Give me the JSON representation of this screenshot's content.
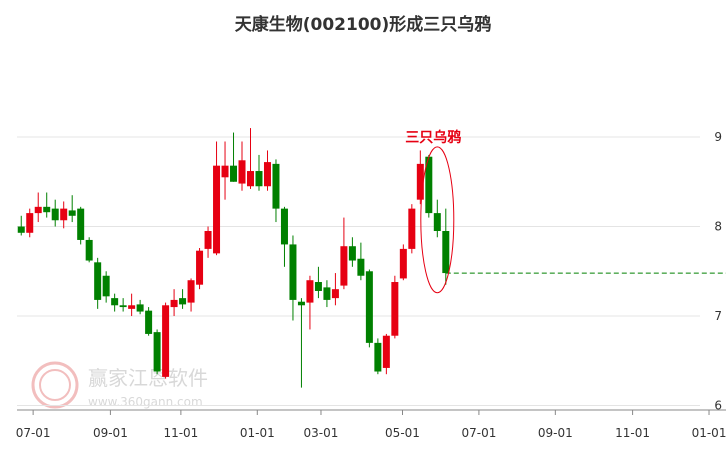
{
  "chart_data": {
    "type": "candlestick",
    "title": "天康生物(002100)形成三只乌鸦",
    "annotation": "三只乌鸦",
    "watermark": "赢家江恩软件",
    "watermark_url": "www.360gann.com",
    "x": [
      0,
      1,
      2,
      3,
      4,
      5,
      6,
      7,
      8,
      9,
      10,
      11,
      12,
      13,
      14,
      15,
      16,
      17,
      18,
      19,
      20,
      21,
      22,
      23,
      24,
      25,
      26,
      27,
      28,
      29,
      30,
      31,
      32,
      33,
      34,
      35,
      36,
      37,
      38,
      39,
      40,
      41,
      42,
      43,
      44,
      45,
      46,
      47,
      48,
      49,
      50
    ],
    "open": [
      8.0,
      7.93,
      8.15,
      8.22,
      8.2,
      8.07,
      8.18,
      8.2,
      7.85,
      7.6,
      7.45,
      7.2,
      7.12,
      7.08,
      7.13,
      7.06,
      6.82,
      6.32,
      7.1,
      7.2,
      7.15,
      7.35,
      7.75,
      7.7,
      8.55,
      8.68,
      8.48,
      8.45,
      8.62,
      8.45,
      8.7,
      8.2,
      7.8,
      7.16,
      7.15,
      7.38,
      7.32,
      7.2,
      7.34,
      7.78,
      7.64,
      7.5,
      6.7,
      6.42,
      6.78,
      7.42,
      7.75,
      8.3,
      8.78,
      8.15,
      7.95
    ],
    "high": [
      8.12,
      8.2,
      8.38,
      8.38,
      8.3,
      8.28,
      8.35,
      8.22,
      7.88,
      7.65,
      7.5,
      7.25,
      7.2,
      7.25,
      7.18,
      7.1,
      6.85,
      7.15,
      7.3,
      7.3,
      7.42,
      7.76,
      8.0,
      8.95,
      8.95,
      9.05,
      8.95,
      9.1,
      8.8,
      8.85,
      8.75,
      8.22,
      7.9,
      7.2,
      7.45,
      7.55,
      7.4,
      7.48,
      8.1,
      7.88,
      7.82,
      7.52,
      6.75,
      6.8,
      7.45,
      7.8,
      8.25,
      8.85,
      8.8,
      8.3,
      8.2
    ],
    "low": [
      7.9,
      7.88,
      8.05,
      8.1,
      8.0,
      7.98,
      8.05,
      7.8,
      7.6,
      7.08,
      7.15,
      7.05,
      7.05,
      7.0,
      7.02,
      6.78,
      6.35,
      6.3,
      7.0,
      7.08,
      7.05,
      7.3,
      7.65,
      7.68,
      8.3,
      8.5,
      8.4,
      8.42,
      8.4,
      8.4,
      8.05,
      7.55,
      6.95,
      6.2,
      6.85,
      7.2,
      7.1,
      7.12,
      7.3,
      7.55,
      7.4,
      6.65,
      6.35,
      6.35,
      6.75,
      7.4,
      7.7,
      8.25,
      8.1,
      7.88,
      7.35
    ],
    "close": [
      7.93,
      8.15,
      8.22,
      8.16,
      8.07,
      8.2,
      8.12,
      7.85,
      7.62,
      7.18,
      7.22,
      7.12,
      7.1,
      7.12,
      7.05,
      6.8,
      6.38,
      7.12,
      7.18,
      7.13,
      7.4,
      7.73,
      7.95,
      8.68,
      8.68,
      8.5,
      8.74,
      8.62,
      8.45,
      8.72,
      8.2,
      7.8,
      7.18,
      7.12,
      7.4,
      7.28,
      7.18,
      7.3,
      7.78,
      7.62,
      7.45,
      6.7,
      6.38,
      6.78,
      7.38,
      7.75,
      8.2,
      8.7,
      8.15,
      7.95,
      7.48
    ],
    "up_color": "#e60012",
    "down_color": "#008000",
    "reference_line": 7.48,
    "reference_color": "#008000",
    "pattern_start": 48,
    "pattern_end": 50,
    "annotation_color": "#e60012",
    "xlim": [
      -0.5,
      83
    ],
    "xticks": [
      {
        "value": 1.4,
        "label": "07-01"
      },
      {
        "value": 10.5,
        "label": "09-01"
      },
      {
        "value": 18.8,
        "label": "11-01"
      },
      {
        "value": 27.8,
        "label": "01-01"
      },
      {
        "value": 35.3,
        "label": "03-01"
      },
      {
        "value": 44.9,
        "label": "05-01"
      },
      {
        "value": 53.9,
        "label": "07-01"
      },
      {
        "value": 62.9,
        "label": "09-01"
      },
      {
        "value": 72,
        "label": "11-01"
      },
      {
        "value": 81,
        "label": "01-01"
      }
    ],
    "ylim": [
      5.95,
      9.95
    ],
    "yticks": [
      6,
      7,
      8,
      9
    ],
    "grid": true
  }
}
